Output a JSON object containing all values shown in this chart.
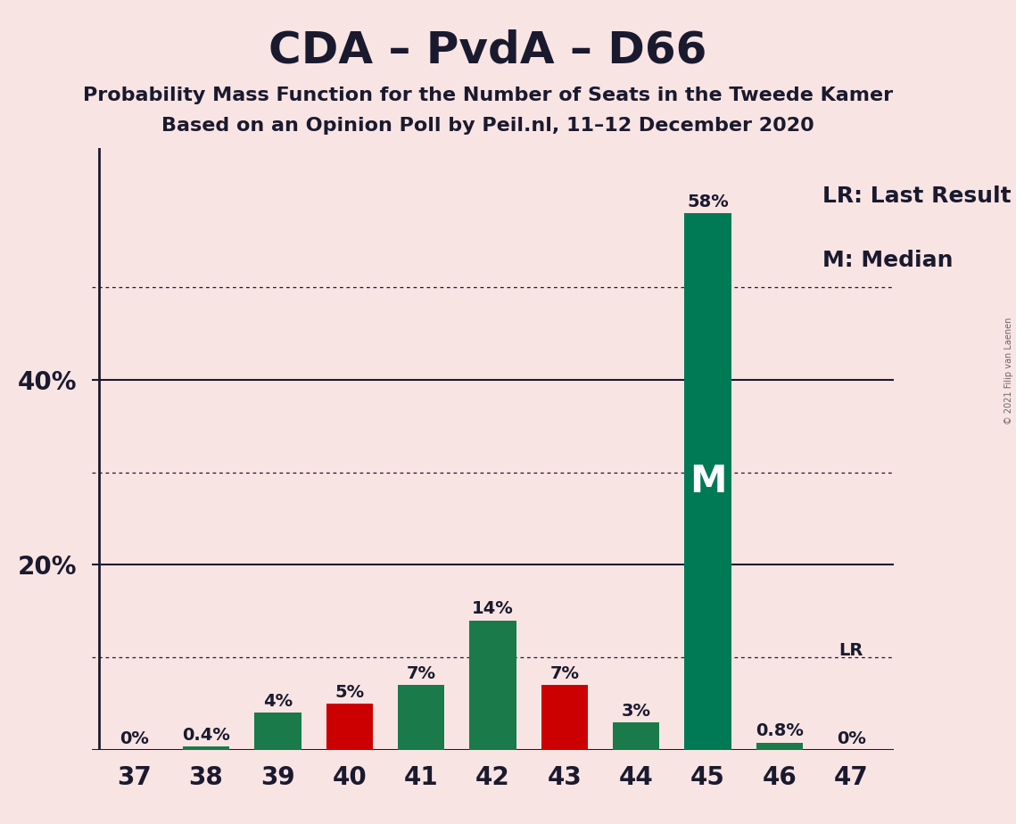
{
  "title": "CDA – PvdA – D66",
  "subtitle1": "Probability Mass Function for the Number of Seats in the Tweede Kamer",
  "subtitle2": "Based on an Opinion Poll by Peil.nl, 11–12 December 2020",
  "copyright": "© 2021 Filip van Laenen",
  "categories": [
    37,
    38,
    39,
    40,
    41,
    42,
    43,
    44,
    45,
    46,
    47
  ],
  "values": [
    0,
    0.4,
    4,
    5,
    7,
    14,
    7,
    3,
    58,
    0.8,
    0
  ],
  "colors": [
    "#1a7a4a",
    "#1a7a4a",
    "#1a7a4a",
    "#cc0000",
    "#1a7a4a",
    "#1a7a4a",
    "#cc0000",
    "#1a7a4a",
    "#007a55",
    "#1a7a4a",
    "#cc0000"
  ],
  "labels": [
    "0%",
    "0.4%",
    "4%",
    "5%",
    "7%",
    "14%",
    "7%",
    "3%",
    "58%",
    "0.8%",
    "0%"
  ],
  "median_bar_idx": 8,
  "median_label": "M",
  "lr_bar_idx": 10,
  "lr_bar_label": "LR",
  "legend_lr": "LR: Last Result",
  "legend_m": "M: Median",
  "background_color": "#f9e4e4",
  "bar_width": 0.65,
  "ylim": [
    0,
    65
  ],
  "dotted_lines": [
    10,
    30,
    50
  ],
  "solid_lines": [
    0,
    20,
    40
  ],
  "ytick_labels": [
    [
      20,
      "20%"
    ],
    [
      40,
      "40%"
    ]
  ],
  "label_fontsize": 14,
  "tick_fontsize": 20,
  "title_fontsize": 36,
  "subtitle_fontsize": 16,
  "legend_fontsize": 18
}
